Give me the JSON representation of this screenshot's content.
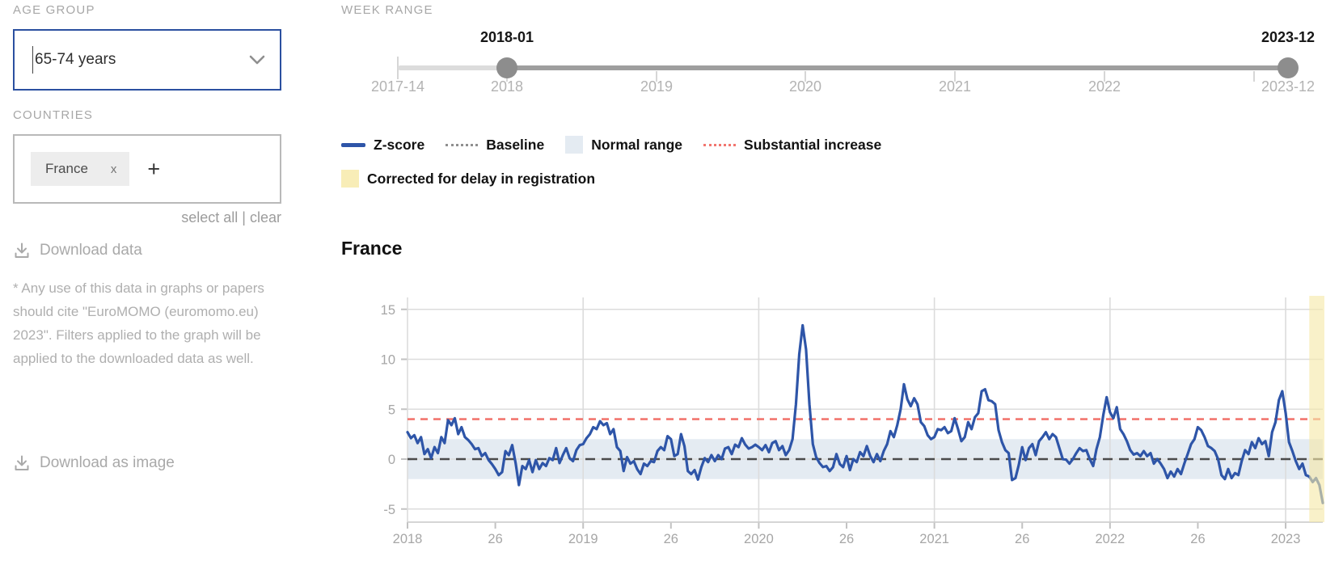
{
  "sidebar": {
    "age_group_label": "AGE GROUP",
    "age_group_value": "65-74 years",
    "countries_label": "COUNTRIES",
    "country_tags": [
      {
        "name": "France"
      }
    ],
    "remove_tag_glyph": "x",
    "add_button_glyph": "+",
    "select_all_label": "select all",
    "links_separator": "|",
    "clear_label": "clear",
    "download_data_label": "Download data",
    "citation_note": "* Any use of this data in graphs or papers should cite \"EuroMOMO (euromomo.eu) 2023\". Filters applied to the graph will be applied to the downloaded data as well.",
    "download_image_label": "Download as image"
  },
  "week_range": {
    "label": "WEEK RANGE",
    "track_start": 72,
    "marks": [
      {
        "x": 72,
        "tall": true
      },
      {
        "x": 207
      },
      {
        "x": 392
      },
      {
        "x": 576
      },
      {
        "x": 761
      },
      {
        "x": 946
      },
      {
        "x": 1131
      }
    ],
    "tick_labels": [
      {
        "text": "2017-14",
        "x": 72
      },
      {
        "text": "2018",
        "x": 207
      },
      {
        "text": "2019",
        "x": 392
      },
      {
        "text": "2020",
        "x": 576
      },
      {
        "text": "2021",
        "x": 761
      },
      {
        "text": "2022",
        "x": 946
      },
      {
        "text": "2023-12",
        "x": 1173
      }
    ],
    "handles": [
      {
        "label": "2018-01",
        "x": 207
      },
      {
        "label": "2023-12",
        "x": 1173
      }
    ],
    "colors": {
      "inactive": "#dcdcdc",
      "active": "#9e9e9e",
      "handle": "#8d8d8d"
    }
  },
  "legend": {
    "rows": [
      [
        {
          "swatch": "line",
          "color": "#2e55a8",
          "label": "Z-score"
        },
        {
          "swatch": "dotted",
          "color": "#8f8f8f",
          "label": "Baseline"
        },
        {
          "swatch": "box",
          "color": "#e4ebf2",
          "label": "Normal range"
        },
        {
          "swatch": "dotted",
          "color": "#f2766f",
          "label": "Substantial increase"
        }
      ],
      [
        {
          "swatch": "box",
          "color": "#f8edb7",
          "label": "Corrected for delay in registration"
        }
      ]
    ]
  },
  "chart_data": {
    "type": "line",
    "title": "France",
    "x_start": "2018-01",
    "x_end": "2023-12",
    "ylim": [
      -5,
      15
    ],
    "y_ticks": [
      "15",
      "10",
      "5",
      "0",
      "-5"
    ],
    "y_tick_values": [
      15,
      10,
      5,
      0,
      -5
    ],
    "x_ticks": {
      "indices": [
        0,
        26,
        52,
        78,
        104,
        130,
        156,
        182,
        208,
        234,
        260
      ],
      "labels": [
        "2018",
        "26",
        "2019",
        "26",
        "2020",
        "26",
        "2021",
        "26",
        "2022",
        "26",
        "2023"
      ]
    },
    "baseline": {
      "value": 0,
      "color": "#4a4a4a",
      "label": "Baseline"
    },
    "substantial_increase": {
      "value": 4,
      "color": "#f2766f",
      "label": "Substantial increase"
    },
    "normal_range": {
      "min": -2,
      "max": 2,
      "color": "#e4ebf2",
      "label": "Normal range"
    },
    "corrected_for_delay": {
      "start_index": 267,
      "color": "#f5e9a8",
      "label": "Corrected for delay in registration"
    },
    "grid": true,
    "series": [
      {
        "name": "Z-score",
        "color": "#2e55a8",
        "values": [
          2.7,
          2.1,
          2.4,
          1.6,
          2.2,
          0.5,
          1.0,
          0.1,
          1.2,
          0.6,
          2.2,
          1.6,
          3.9,
          3.4,
          4.1,
          2.5,
          3.2,
          2.2,
          1.9,
          1.5,
          1.0,
          1.1,
          0.3,
          0.6,
          -0.1,
          -0.5,
          -1.0,
          -1.6,
          -1.3,
          0.8,
          0.4,
          1.4,
          -0.4,
          -2.6,
          -0.7,
          -1.0,
          -0.1,
          -1.3,
          -0.1,
          -1.0,
          -0.4,
          -0.7,
          0.1,
          -0.1,
          1.1,
          -0.4,
          0.4,
          1.1,
          0.1,
          -0.2,
          0.9,
          1.4,
          1.5,
          2.1,
          2.5,
          3.2,
          3.0,
          3.8,
          3.4,
          3.6,
          2.5,
          3.0,
          1.2,
          0.8,
          -1.2,
          0.2,
          -0.45,
          -0.2,
          -1.0,
          -1.5,
          -0.45,
          -0.7,
          -0.2,
          -0.3,
          0.8,
          1.2,
          0.9,
          2.3,
          2.0,
          0.3,
          0.5,
          2.5,
          1.3,
          -1.2,
          -1.5,
          -1.1,
          -2.05,
          -0.8,
          0.1,
          -0.3,
          0.4,
          -0.2,
          0.4,
          0.0,
          1.05,
          1.2,
          0.5,
          1.45,
          1.2,
          2.1,
          1.45,
          1.05,
          1.2,
          1.45,
          1.2,
          0.9,
          1.4,
          0.7,
          1.6,
          1.8,
          0.9,
          1.3,
          0.4,
          0.9,
          2.0,
          5.5,
          10.5,
          13.4,
          11.0,
          5.5,
          1.5,
          0.2,
          -0.4,
          -0.8,
          -0.7,
          -1.2,
          -0.8,
          0.5,
          -0.5,
          -0.8,
          0.3,
          -1.1,
          0.0,
          -0.3,
          0.7,
          0.3,
          1.3,
          0.3,
          -0.3,
          0.5,
          -0.2,
          0.8,
          1.5,
          2.8,
          2.2,
          3.4,
          5.0,
          7.5,
          6.0,
          5.3,
          6.1,
          5.5,
          3.7,
          3.3,
          2.4,
          2.0,
          2.2,
          3.0,
          2.9,
          3.2,
          2.6,
          2.8,
          4.1,
          3.0,
          1.8,
          2.2,
          3.7,
          3.0,
          4.2,
          4.6,
          6.8,
          7.0,
          5.9,
          5.8,
          5.5,
          2.9,
          1.7,
          0.9,
          0.6,
          -2.1,
          -1.9,
          -0.55,
          1.2,
          -0.1,
          1.1,
          1.5,
          0.4,
          1.8,
          2.2,
          2.7,
          2.0,
          2.5,
          2.2,
          1.1,
          0.0,
          -0.05,
          -0.45,
          0.0,
          0.6,
          1.1,
          0.8,
          0.9,
          0.0,
          -0.7,
          1.0,
          2.2,
          4.4,
          6.2,
          4.7,
          4.1,
          5.2,
          3.0,
          2.5,
          1.8,
          0.9,
          0.45,
          0.6,
          0.3,
          0.8,
          0.3,
          0.6,
          -0.45,
          0.0,
          -0.45,
          -1.0,
          -1.9,
          -1.25,
          -1.75,
          -1.0,
          -1.5,
          -0.45,
          0.5,
          1.5,
          2.0,
          3.2,
          2.9,
          2.2,
          1.3,
          1.1,
          0.8,
          0.0,
          -1.6,
          -2.0,
          -1.0,
          -1.9,
          -1.4,
          -1.6,
          -0.2,
          0.9,
          0.5,
          1.7,
          1.1,
          2.1,
          1.5,
          1.8,
          0.3,
          2.7,
          3.7,
          5.9,
          6.8,
          4.6,
          1.7,
          0.8,
          -0.2,
          -1.0,
          -0.45,
          -1.6,
          -1.75,
          -2.3,
          -1.9,
          -2.6,
          -4.4
        ]
      }
    ]
  }
}
